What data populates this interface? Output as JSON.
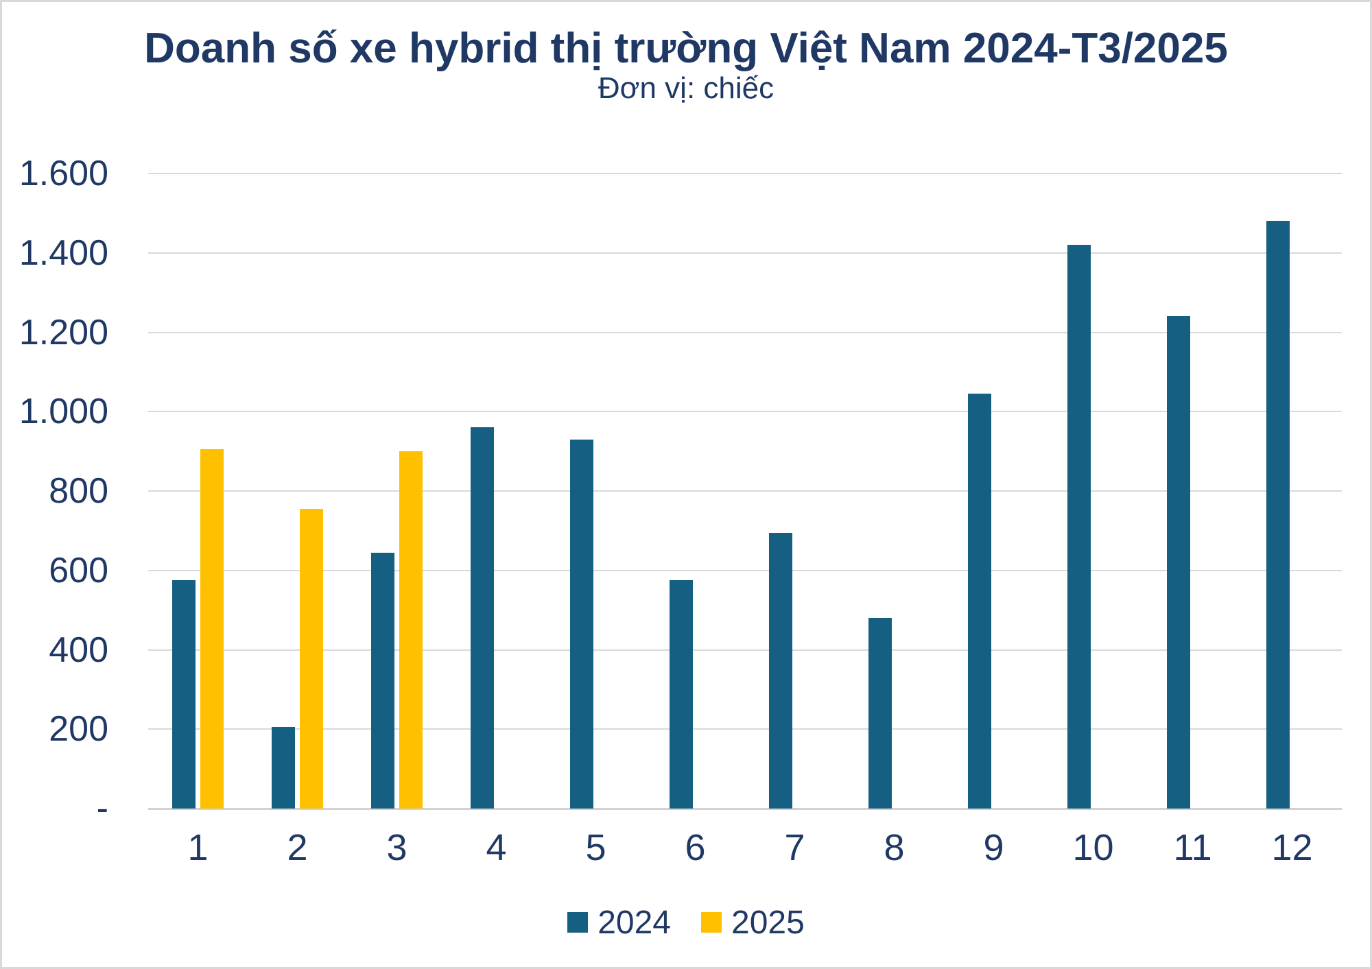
{
  "chart_data": {
    "type": "bar",
    "title": "Doanh số xe hybrid thị trường Việt Nam 2024-T3/2025",
    "subtitle": "Đơn vị: chiếc",
    "categories": [
      "1",
      "2",
      "3",
      "4",
      "5",
      "6",
      "7",
      "8",
      "9",
      "10",
      "11",
      "12"
    ],
    "series": [
      {
        "name": "2024",
        "color": "#156082",
        "values": [
          575,
          205,
          645,
          960,
          930,
          575,
          695,
          480,
          1045,
          1420,
          1240,
          1480
        ]
      },
      {
        "name": "2025",
        "color": "#FFC000",
        "values": [
          905,
          755,
          900,
          null,
          null,
          null,
          null,
          null,
          null,
          null,
          null,
          null
        ]
      }
    ],
    "ylim": [
      0,
      1600
    ],
    "ytick_step": 200,
    "ytick_labels": [
      "-",
      "200",
      "400",
      "600",
      "800",
      "1.000",
      "1.200",
      "1.400",
      "1.600"
    ],
    "grid": "horizontal",
    "legend_position": "bottom",
    "colors": {
      "text": "#1F3864",
      "gridline": "#D9D9D9",
      "axis_line": "#D2D2D2",
      "frame_border": "#D9D9D9",
      "background": "#FFFFFF"
    }
  }
}
